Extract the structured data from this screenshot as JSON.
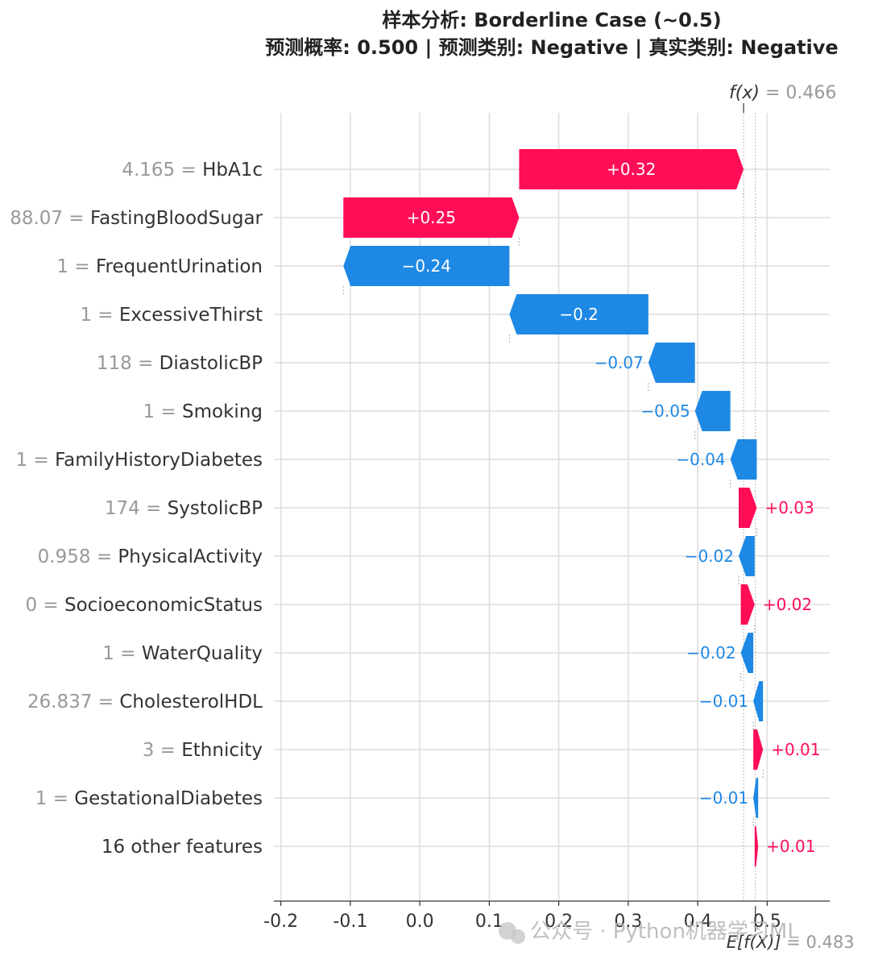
{
  "title_line1": "样本分析: Borderline Case (~0.5)",
  "title_line2": "预测概率: 0.500 | 预测类别: Negative | 真实类别: Negative",
  "fx_label": "f(x)",
  "fx_value": "= 0.466",
  "ex_label": "E[f(X)]",
  "ex_value": "= 0.483",
  "watermark": "公众号 · Python机器学习ML",
  "colors": {
    "positive": "#ff0d57",
    "negative": "#1e88e5",
    "grid": "#dddddd",
    "text_muted": "#999999",
    "text": "#333333"
  },
  "chart_data": {
    "type": "waterfall",
    "base_value": 0.483,
    "output_value": 0.466,
    "xlim": [
      -0.21,
      0.59
    ],
    "xticks": [
      -0.2,
      -0.1,
      0.0,
      0.1,
      0.2,
      0.3,
      0.4,
      0.5
    ],
    "xtick_labels": [
      "-0.2",
      "-0.1",
      "0.0",
      "0.1",
      "0.2",
      "0.3",
      "0.4",
      "0.5"
    ],
    "features": [
      {
        "value": "4.165",
        "name": "HbA1c",
        "start": 0.143,
        "end": 0.466,
        "label": "+0.32"
      },
      {
        "value": "88.07",
        "name": "FastingBloodSugar",
        "start": -0.11,
        "end": 0.143,
        "label": "+0.25"
      },
      {
        "value": "1",
        "name": "FrequentUrination",
        "start": 0.129,
        "end": -0.11,
        "label": "−0.24"
      },
      {
        "value": "1",
        "name": "ExcessiveThirst",
        "start": 0.329,
        "end": 0.129,
        "label": "−0.2"
      },
      {
        "value": "118",
        "name": "DiastolicBP",
        "start": 0.396,
        "end": 0.329,
        "label": "−0.07"
      },
      {
        "value": "1",
        "name": "Smoking",
        "start": 0.447,
        "end": 0.396,
        "label": "−0.05"
      },
      {
        "value": "1",
        "name": "FamilyHistoryDiabetes",
        "start": 0.485,
        "end": 0.447,
        "label": "−0.04"
      },
      {
        "value": "174",
        "name": "SystolicBP",
        "start": 0.459,
        "end": 0.485,
        "label": "+0.03"
      },
      {
        "value": "0.958",
        "name": "PhysicalActivity",
        "start": 0.482,
        "end": 0.459,
        "label": "−0.02"
      },
      {
        "value": "0",
        "name": "SocioeconomicStatus",
        "start": 0.462,
        "end": 0.482,
        "label": "+0.02"
      },
      {
        "value": "1",
        "name": "WaterQuality",
        "start": 0.48,
        "end": 0.462,
        "label": "−0.02"
      },
      {
        "value": "26.837",
        "name": "CholesterolHDL",
        "start": 0.494,
        "end": 0.48,
        "label": "−0.01"
      },
      {
        "value": "3",
        "name": "Ethnicity",
        "start": 0.48,
        "end": 0.494,
        "label": "+0.01"
      },
      {
        "value": "1",
        "name": "GestationalDiabetes",
        "start": 0.487,
        "end": 0.48,
        "label": "−0.01"
      },
      {
        "value": "",
        "name": "16 other features",
        "start": 0.482,
        "end": 0.487,
        "label": "+0.01"
      }
    ]
  }
}
